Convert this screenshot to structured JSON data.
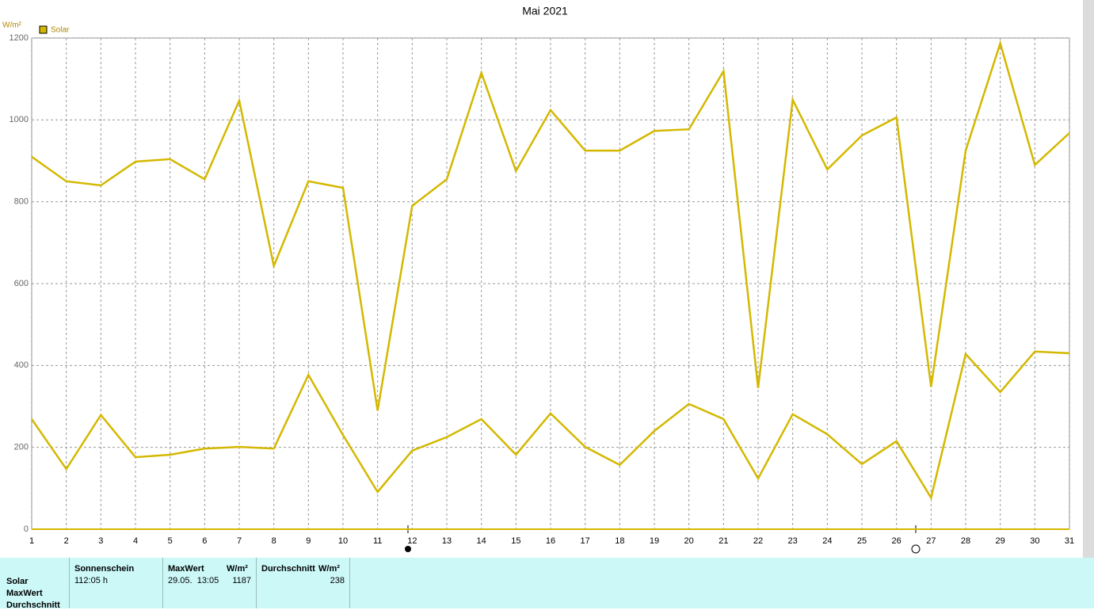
{
  "chart_data": {
    "type": "line",
    "title": "Mai 2021",
    "y_unit": "W/m²",
    "x": [
      1,
      2,
      3,
      4,
      5,
      6,
      7,
      8,
      9,
      10,
      11,
      12,
      13,
      14,
      15,
      16,
      17,
      18,
      19,
      20,
      21,
      22,
      23,
      24,
      25,
      26,
      27,
      28,
      29,
      30,
      31
    ],
    "xlim": [
      1,
      31
    ],
    "xticks": [
      1,
      2,
      3,
      4,
      5,
      6,
      7,
      8,
      9,
      10,
      11,
      12,
      13,
      14,
      15,
      16,
      17,
      18,
      19,
      20,
      21,
      22,
      23,
      24,
      25,
      26,
      27,
      28,
      29,
      30,
      31
    ],
    "ylim": [
      0,
      1200
    ],
    "yticks": [
      0,
      200,
      400,
      600,
      800,
      1000,
      1200
    ],
    "grid": true,
    "series": [
      {
        "name": "Solar",
        "color": "#d4b800",
        "values": [
          910,
          850,
          840,
          898,
          904,
          855,
          1047,
          643,
          850,
          834,
          290,
          790,
          855,
          1115,
          875,
          1024,
          925,
          925,
          973,
          977,
          1119,
          345,
          1049,
          879,
          962,
          1006,
          348,
          925,
          1187,
          890,
          968
        ]
      },
      {
        "color": "#d4b800",
        "values": [
          269,
          147,
          279,
          176,
          182,
          197,
          201,
          197,
          377,
          230,
          91,
          192,
          225,
          269,
          182,
          283,
          201,
          157,
          240,
          306,
          269,
          124,
          281,
          232,
          159,
          215,
          77,
          428,
          335,
          434,
          430
        ]
      }
    ]
  },
  "info_panel": {
    "row_labels": [
      "Solar",
      "MaxWert",
      "Durchschnitt"
    ],
    "sunshine": {
      "header": "Sonnenschein",
      "value": "112:05 h"
    },
    "max": {
      "header": "MaxWert",
      "unit": "W/m²",
      "date": "29.05.  13:05",
      "value": 1187
    },
    "average": {
      "header": "Durchschnitt",
      "unit": "W/m²",
      "value": 238
    }
  }
}
